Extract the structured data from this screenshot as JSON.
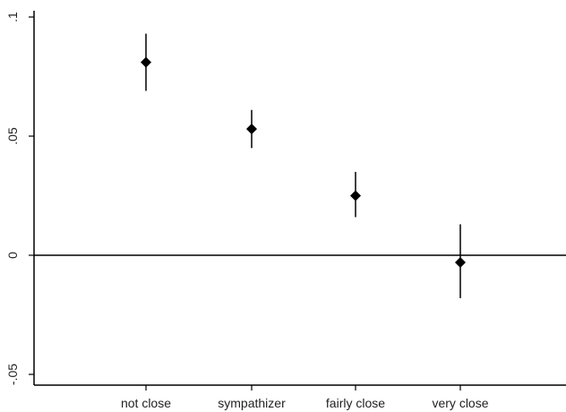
{
  "chart_data": {
    "type": "scatter",
    "title": "",
    "xlabel": "",
    "ylabel": "",
    "categories": [
      "not close",
      "sympathizer",
      "fairly close",
      "very close"
    ],
    "values": [
      0.081,
      0.053,
      0.025,
      -0.003
    ],
    "ci_low": [
      0.069,
      0.045,
      0.016,
      -0.018
    ],
    "ci_high": [
      0.093,
      0.061,
      0.035,
      0.013
    ],
    "ylim": [
      -0.05,
      0.1
    ],
    "yticks": [
      -0.05,
      0,
      0.05,
      0.1
    ],
    "ytick_labels": [
      "-.05",
      "0",
      ".05",
      ".1"
    ],
    "reference_line_y": 0,
    "grid": false,
    "legend": "none",
    "colors": {
      "marker": "#000000",
      "axis": "#000000",
      "text": "#222222"
    }
  }
}
